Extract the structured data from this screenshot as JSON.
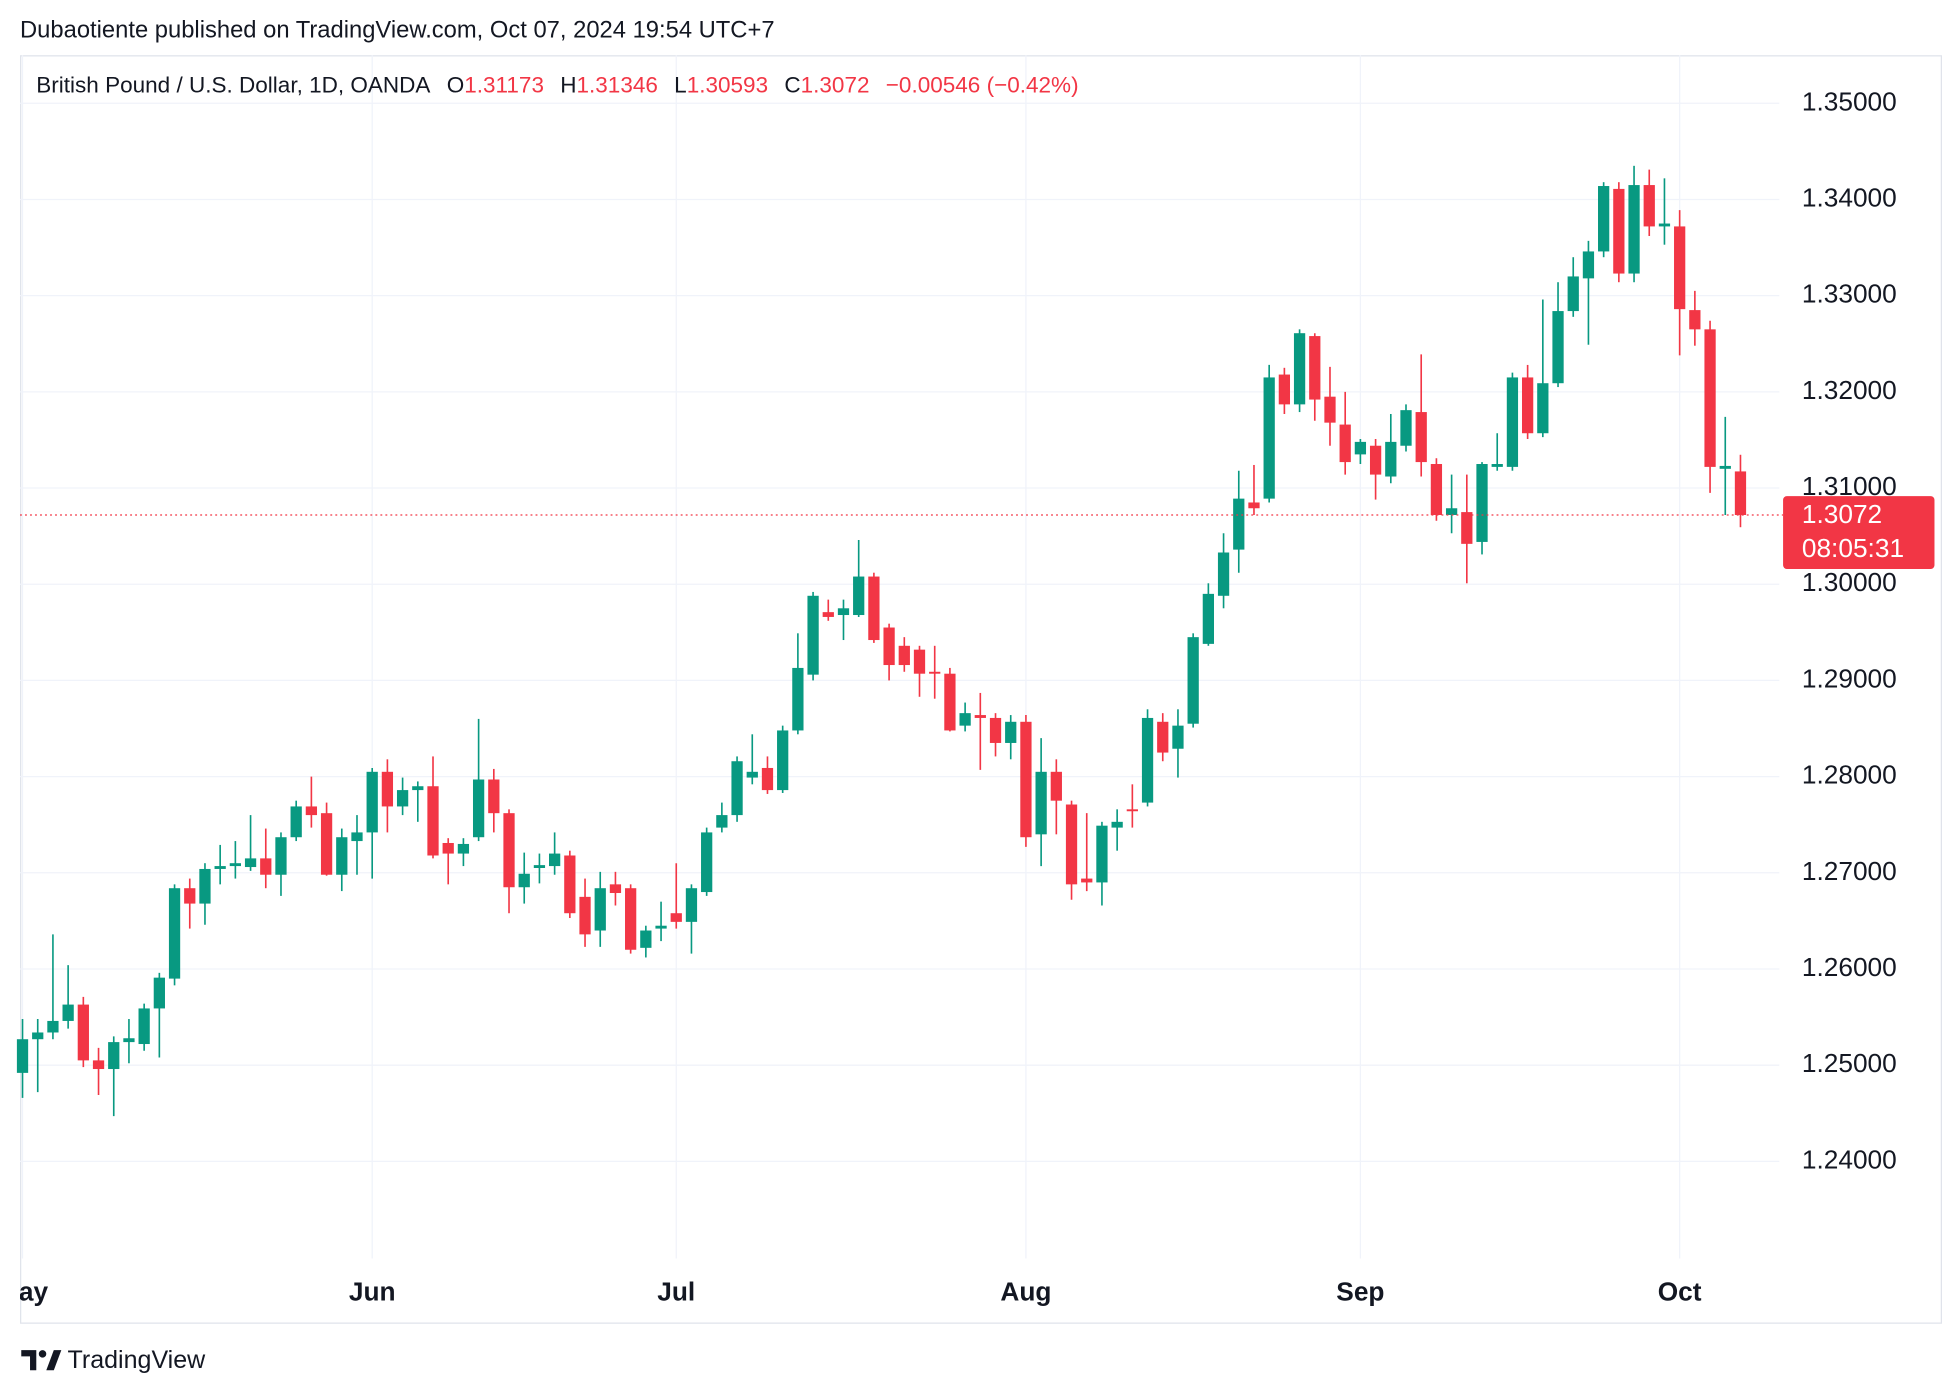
{
  "page": {
    "published": "Dubaotiente published on TradingView.com, Oct 07, 2024 19:54 UTC+7",
    "brand": "TradingView"
  },
  "chart_data": {
    "type": "candlestick",
    "title": "British Pound / U.S. Dollar, 1D, OANDA",
    "ohlc_labels": [
      "O",
      "H",
      "L",
      "C"
    ],
    "change_label": "−0.00546 (−0.42%)",
    "countdown": "08:05:31",
    "up_color": "#089981",
    "down_color": "#f23645",
    "grid": true,
    "open": [
      1.2492,
      1.2527,
      1.2534,
      1.2546,
      1.2563,
      1.2505,
      1.2496,
      1.2524,
      1.2522,
      1.2559,
      1.259,
      1.2684,
      1.2668,
      1.2704,
      1.2707,
      1.2706,
      1.2715,
      1.2698,
      1.2737,
      1.2769,
      1.2762,
      1.2698,
      1.2733,
      1.2742,
      1.2805,
      1.2769,
      1.2786,
      1.279,
      1.2731,
      1.272,
      1.2737,
      1.2797,
      1.2762,
      1.2685,
      1.2705,
      1.2707,
      1.2718,
      1.2675,
      1.264,
      1.2688,
      1.2684,
      1.2622,
      1.2642,
      1.2658,
      1.2649,
      1.268,
      1.2747,
      1.276,
      1.2799,
      1.2809,
      1.2786,
      1.2848,
      1.2906,
      1.2971,
      1.2968,
      1.2968,
      1.3008,
      1.2955,
      1.2936,
      1.2932,
      1.2909,
      1.2907,
      1.2853,
      1.2864,
      1.2861,
      1.2835,
      1.2857,
      1.274,
      1.2805,
      1.2771,
      1.2694,
      1.269,
      1.2747,
      1.2766,
      1.2773,
      1.2857,
      1.2829,
      1.2855,
      1.2938,
      1.2988,
      1.3036,
      1.3085,
      1.3089,
      1.3218,
      1.3187,
      1.3258,
      1.3195,
      1.3166,
      1.3135,
      1.3144,
      1.3112,
      1.3144,
      1.3179,
      1.3125,
      1.3072,
      1.3075,
      1.3044,
      1.3122,
      1.3122,
      1.3215,
      1.3157,
      1.3209,
      1.3284,
      1.3318,
      1.3346,
      1.3411,
      1.3323,
      1.3415,
      1.3372,
      1.3372,
      1.3285,
      1.3265,
      1.312,
      1.31173
    ],
    "high": [
      1.2548,
      1.2548,
      1.2636,
      1.2604,
      1.2571,
      1.2518,
      1.253,
      1.2548,
      1.2564,
      1.2596,
      1.2688,
      1.2694,
      1.271,
      1.2729,
      1.2733,
      1.276,
      1.2746,
      1.2742,
      1.2775,
      1.28,
      1.2773,
      1.2746,
      1.276,
      1.2809,
      1.2818,
      1.2799,
      1.2795,
      1.2821,
      1.2736,
      1.2736,
      1.286,
      1.2808,
      1.2766,
      1.2721,
      1.272,
      1.2742,
      1.2723,
      1.2694,
      1.2701,
      1.2701,
      1.2688,
      1.2645,
      1.267,
      1.271,
      1.2688,
      1.2747,
      1.2773,
      1.2821,
      1.2844,
      1.2821,
      1.2853,
      1.2949,
      1.2992,
      1.2984,
      1.2984,
      1.3046,
      1.3012,
      1.2959,
      1.2945,
      1.2936,
      1.2936,
      1.2913,
      1.2877,
      1.2887,
      1.2866,
      1.2864,
      1.2864,
      1.284,
      1.2818,
      1.2775,
      1.2762,
      1.2753,
      1.2766,
      1.2792,
      1.287,
      1.2866,
      1.287,
      1.2949,
      1.3001,
      1.3053,
      1.3118,
      1.3124,
      1.3228,
      1.3225,
      1.3265,
      1.3261,
      1.3226,
      1.32,
      1.3151,
      1.3151,
      1.3177,
      1.3187,
      1.3239,
      1.3131,
      1.3114,
      1.3114,
      1.3127,
      1.3157,
      1.322,
      1.3228,
      1.3296,
      1.3314,
      1.334,
      1.3357,
      1.3418,
      1.3418,
      1.3435,
      1.3431,
      1.3422,
      1.3389,
      1.3305,
      1.3274,
      1.3174,
      1.31346
    ],
    "low": [
      1.2466,
      1.2472,
      1.2527,
      1.2538,
      1.2498,
      1.2469,
      1.2447,
      1.2502,
      1.2515,
      1.2508,
      1.2583,
      1.2642,
      1.2646,
      1.2688,
      1.2694,
      1.2702,
      1.2684,
      1.2676,
      1.2733,
      1.2747,
      1.2697,
      1.2681,
      1.2698,
      1.2694,
      1.2742,
      1.276,
      1.2753,
      1.2715,
      1.2688,
      1.2707,
      1.2733,
      1.2742,
      1.2658,
      1.2668,
      1.2689,
      1.2698,
      1.2653,
      1.2623,
      1.2623,
      1.2666,
      1.2616,
      1.2612,
      1.2629,
      1.2642,
      1.2616,
      1.2676,
      1.2742,
      1.2753,
      1.2792,
      1.2782,
      1.2783,
      1.2844,
      1.29,
      1.2962,
      1.2942,
      1.2966,
      1.2939,
      1.29,
      1.2909,
      1.2883,
      1.2881,
      1.2847,
      1.2847,
      1.2807,
      1.2821,
      1.2818,
      1.2727,
      1.2707,
      1.274,
      1.2672,
      1.2681,
      1.2666,
      1.2723,
      1.2747,
      1.2769,
      1.2816,
      1.2799,
      1.2851,
      1.2936,
      1.2975,
      1.3012,
      1.3072,
      1.3085,
      1.3177,
      1.3179,
      1.317,
      1.3144,
      1.3114,
      1.3125,
      1.3088,
      1.3105,
      1.3138,
      1.3112,
      1.3066,
      1.3053,
      1.3001,
      1.3031,
      1.3118,
      1.3118,
      1.3151,
      1.3153,
      1.3205,
      1.3278,
      1.3249,
      1.334,
      1.3314,
      1.3314,
      1.3362,
      1.3353,
      1.3238,
      1.3248,
      1.3095,
      1.3072,
      1.30593
    ],
    "close": [
      1.2527,
      1.2534,
      1.2546,
      1.2563,
      1.2505,
      1.2496,
      1.2524,
      1.2528,
      1.2559,
      1.2591,
      1.2684,
      1.2668,
      1.2704,
      1.2707,
      1.271,
      1.2715,
      1.2698,
      1.2737,
      1.2769,
      1.276,
      1.2698,
      1.2737,
      1.2742,
      1.2805,
      1.2769,
      1.2786,
      1.279,
      1.2718,
      1.272,
      1.273,
      1.2797,
      1.2762,
      1.2685,
      1.2699,
      1.2708,
      1.272,
      1.2658,
      1.2636,
      1.2684,
      1.2679,
      1.262,
      1.264,
      1.2645,
      1.2649,
      1.2684,
      1.2742,
      1.276,
      1.2816,
      1.2805,
      1.2786,
      1.2848,
      1.2913,
      1.2988,
      1.2966,
      1.2975,
      1.3008,
      1.2942,
      1.2916,
      1.2916,
      1.2907,
      1.2907,
      1.2848,
      1.2866,
      1.2861,
      1.2835,
      1.2857,
      1.2737,
      1.2805,
      1.2775,
      1.2688,
      1.269,
      1.2749,
      1.2753,
      1.2764,
      1.2861,
      1.2825,
      1.2853,
      1.2945,
      1.299,
      1.3033,
      1.3089,
      1.3079,
      1.3215,
      1.3187,
      1.3261,
      1.3192,
      1.3168,
      1.3127,
      1.3148,
      1.3114,
      1.3148,
      1.3181,
      1.3127,
      1.3072,
      1.3079,
      1.3042,
      1.3125,
      1.3125,
      1.3215,
      1.3157,
      1.3209,
      1.3284,
      1.332,
      1.3346,
      1.3414,
      1.3323,
      1.3415,
      1.3372,
      1.3375,
      1.3286,
      1.3265,
      1.3122,
      1.3123,
      1.3072
    ],
    "ylim": [
      1.2299,
      1.355
    ],
    "yticks": [
      {
        "value": 1.24,
        "label": "1.24000"
      },
      {
        "value": 1.25,
        "label": "1.25000"
      },
      {
        "value": 1.26,
        "label": "1.26000"
      },
      {
        "value": 1.27,
        "label": "1.27000"
      },
      {
        "value": 1.28,
        "label": "1.28000"
      },
      {
        "value": 1.29,
        "label": "1.29000"
      },
      {
        "value": 1.3,
        "label": "1.30000"
      },
      {
        "value": 1.31,
        "label": "1.31000"
      },
      {
        "value": 1.32,
        "label": "1.32000"
      },
      {
        "value": 1.33,
        "label": "1.33000"
      },
      {
        "value": 1.34,
        "label": "1.34000"
      },
      {
        "value": 1.35,
        "label": "1.35000"
      }
    ],
    "xticks": [
      {
        "value": 0,
        "label": "May"
      },
      {
        "value": 23,
        "label": "Jun"
      },
      {
        "value": 43,
        "label": "Jul"
      },
      {
        "value": 66,
        "label": "Aug"
      },
      {
        "value": 88,
        "label": "Sep"
      },
      {
        "value": 109,
        "label": "Oct"
      }
    ]
  }
}
